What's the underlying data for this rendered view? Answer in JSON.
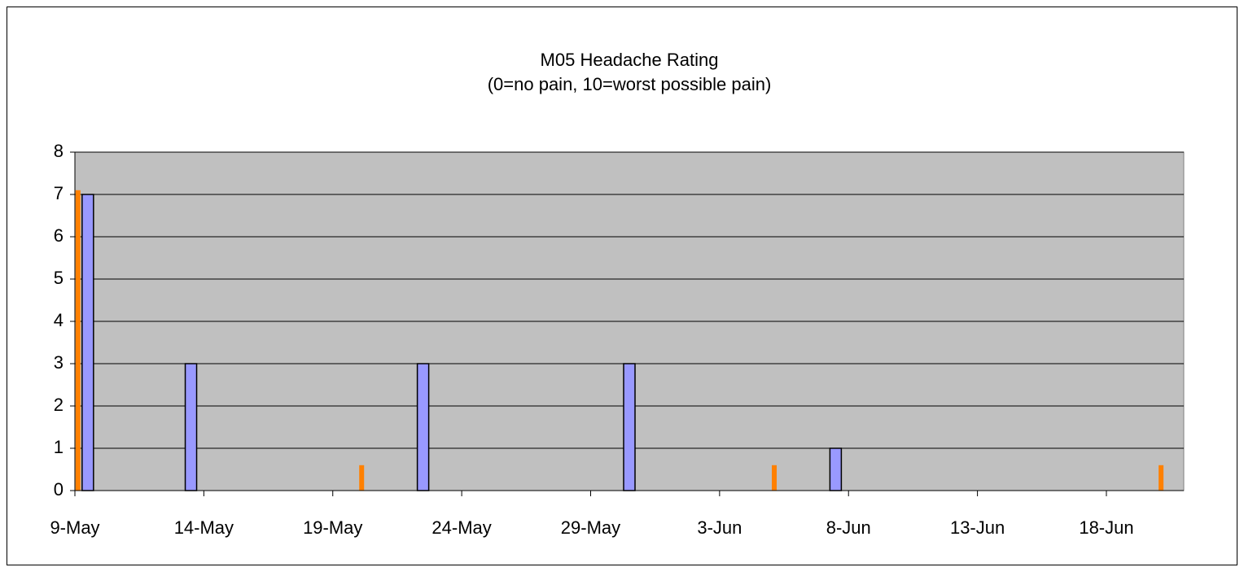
{
  "chart_data": {
    "type": "bar",
    "title": "M05 Headache Rating",
    "subtitle": "(0=no pain, 10=worst possible pain)",
    "xlim": [
      "9-May",
      "21-Jun"
    ],
    "xticks": [
      "9-May",
      "14-May",
      "19-May",
      "24-May",
      "29-May",
      "3-Jun",
      "8-Jun",
      "13-Jun",
      "18-Jun"
    ],
    "ylim": [
      0,
      8
    ],
    "yticks": [
      0,
      1,
      2,
      3,
      4,
      5,
      6,
      7,
      8
    ],
    "grid": true,
    "series": [
      {
        "color": "#ff8000",
        "x": [
          "9-May",
          "20-May",
          "5-Jun",
          "20-Jun"
        ],
        "values": [
          7.1,
          0.6,
          0.6,
          0.6
        ]
      },
      {
        "color": "#9999ff",
        "x": [
          "9-May",
          "13-May",
          "22-May",
          "30-May",
          "7-Jun"
        ],
        "values": [
          7,
          3,
          3,
          3,
          1
        ]
      }
    ]
  }
}
